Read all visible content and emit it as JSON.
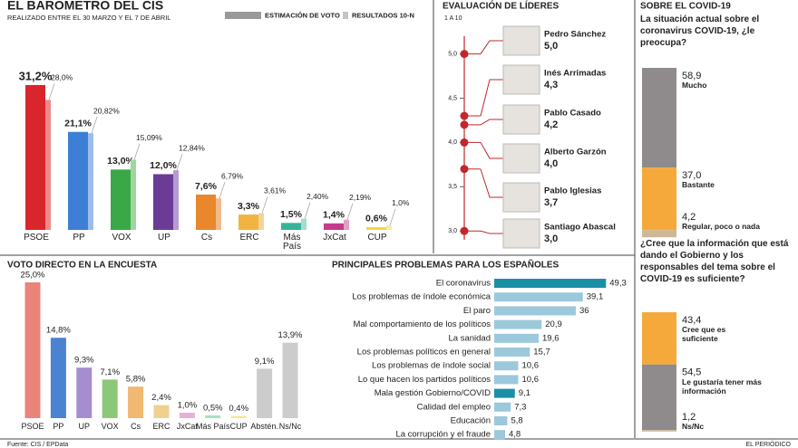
{
  "chart_data": [
    {
      "type": "bar",
      "title": "EL BARÓMETRO DEL CIS",
      "subtitle": "REALIZADO ENTRE EL 30 MARZO Y EL 7 DE ABRIL",
      "categories": [
        "PSOE",
        "PP",
        "VOX",
        "UP",
        "Cs",
        "ERC",
        "Más País",
        "JxCat",
        "CUP"
      ],
      "series": [
        {
          "name": "ESTIMACIÓN DE VOTO",
          "color": "#9a9a9a",
          "colors": [
            "#d9262c",
            "#3d7fd6",
            "#3aa847",
            "#6a3c96",
            "#e8872b",
            "#f2b441",
            "#37b39b",
            "#c43c8a",
            "#f0d83a"
          ],
          "values": [
            31.2,
            21.1,
            13.0,
            12.0,
            7.6,
            3.3,
            1.5,
            1.4,
            0.6
          ],
          "value_labels": [
            "31,2%",
            "21,1%",
            "13,0%",
            "12,0%",
            "7,6%",
            "3,3%",
            "1,5%",
            "1,4%",
            "0,6%"
          ]
        },
        {
          "name": "RESULTADOS 10-N",
          "color": "#c4c4c4",
          "colors": [
            "#ef8a8a",
            "#9cbde8",
            "#9ed69e",
            "#b79ad0",
            "#f2b98a",
            "#f5d49a",
            "#a2dcd0",
            "#e0a0c8",
            "#f5ec9f"
          ],
          "values": [
            28.0,
            20.82,
            15.09,
            12.84,
            6.79,
            3.61,
            2.4,
            2.19,
            1.0
          ],
          "value_labels": [
            "28,0%",
            "20,82%",
            "15,09%",
            "12,84%",
            "6,79%",
            "3,61%",
            "2,40%",
            "2,19%",
            "1,0%"
          ]
        }
      ]
    },
    {
      "type": "dot",
      "title": "EVALUACIÓN DE LÍDERES",
      "subtitle": "1 A 10",
      "categories": [
        "Pedro Sánchez",
        "Inés Arrimadas",
        "Pablo Casado",
        "Alberto Garzón",
        "Pablo Iglesias",
        "Santiago Abascal"
      ],
      "values": [
        5.0,
        4.3,
        4.2,
        4.0,
        3.7,
        3.0
      ],
      "value_labels": [
        "5,0",
        "4,3",
        "4,2",
        "4,0",
        "3,7",
        "3,0"
      ],
      "color": "#c0282d",
      "ylim": [
        2.9,
        5.2
      ],
      "yticks": [
        {
          "value": 3,
          "label": "3,0"
        },
        {
          "value": 3.5,
          "label": "3,5"
        },
        {
          "value": 4,
          "label": "4,0"
        },
        {
          "value": 4.5,
          "label": "4,5"
        },
        {
          "value": 5,
          "label": "5,0"
        }
      ]
    },
    {
      "type": "stacked",
      "title": "SOBRE EL COVID-19",
      "subtitle": "La situación actual sobre el coronavirus COVID-19, ¿le preocupa?",
      "series": [
        {
          "name": "Mucho",
          "color": "#8f8a8c",
          "values": [
            58.9
          ],
          "value_labels": [
            "58,9"
          ]
        },
        {
          "name": "Bastante",
          "color": "#f5a93a",
          "values": [
            37.0
          ],
          "value_labels": [
            "37,0"
          ]
        },
        {
          "name": "Regular, poco o nada",
          "color": "#cdb89a",
          "values": [
            4.2
          ],
          "value_labels": [
            "4,2"
          ]
        }
      ]
    },
    {
      "type": "stacked",
      "subtitle": "¿Cree que la información que está dando el Gobierno y los responsables del tema sobre el COVID-19 es suficiente?",
      "series": [
        {
          "name": "Cree que es suficiente",
          "color": "#f5a93a",
          "values": [
            43.4
          ],
          "value_labels": [
            "43,4"
          ]
        },
        {
          "name": "Le gustaría tener más información",
          "color": "#8f8a8c",
          "values": [
            54.5
          ],
          "value_labels": [
            "54,5"
          ]
        },
        {
          "name": "Ns/Nc",
          "color": "#cdb89a",
          "values": [
            1.2
          ],
          "value_labels": [
            "1,2"
          ]
        }
      ]
    },
    {
      "type": "bar",
      "title": "VOTO DIRECTO EN LA ENCUESTA",
      "categories": [
        "PSOE",
        "PP",
        "UP",
        "VOX",
        "Cs",
        "ERC",
        "JxCat",
        "Más País",
        "CUP",
        "Abstén.",
        "Ns/Nc"
      ],
      "values": [
        25.0,
        14.8,
        9.3,
        7.1,
        5.8,
        2.4,
        1.0,
        0.5,
        0.4,
        9.1,
        13.9
      ],
      "value_labels": [
        "25,0%",
        "14,8%",
        "9,3%",
        "7,1%",
        "5,8%",
        "2,4%",
        "1,0%",
        "0,5%",
        "0,4%",
        "9,1%",
        "13,9%"
      ],
      "colors": [
        "#e8847a",
        "#4b83d0",
        "#a58ed0",
        "#8dc87a",
        "#f0b870",
        "#f0d090",
        "#e8b0d8",
        "#a8e0c0",
        "#f5e890",
        "#cccccc",
        "#cccccc"
      ]
    },
    {
      "type": "hbar",
      "title": "PRINCIPALES PROBLEMAS PARA LOS ESPAÑOLES",
      "categories": [
        "El coronavirus",
        "Los problemas de índole económica",
        "El paro",
        "Mal comportamiento de los políticos",
        "La sanidad",
        "Los problemas políticos en general",
        "Los problemas de índole social",
        "Lo que hacen los partidos políticos",
        "Mala gestión Gobierno/COVID",
        "Calidad del empleo",
        "Educación",
        "La corrupción y el fraude"
      ],
      "values": [
        49.3,
        39.1,
        36,
        20.9,
        19.6,
        15.7,
        10.6,
        10.6,
        9.1,
        7.3,
        5.8,
        4.8
      ],
      "value_labels": [
        "49,3",
        "39,1",
        "36",
        "20,9",
        "19,6",
        "15,7",
        "10,6",
        "10,6",
        "9,1",
        "7,3",
        "5,8",
        "4,8"
      ],
      "colors": [
        "#1a8fa6",
        "#9cc8dc",
        "#9cc8dc",
        "#9cc8dc",
        "#9cc8dc",
        "#9cc8dc",
        "#9cc8dc",
        "#9cc8dc",
        "#1a8fa6",
        "#9cc8dc",
        "#9cc8dc",
        "#9cc8dc"
      ]
    }
  ],
  "footer": {
    "source": "Fuente: CIS / EPData",
    "publisher": "EL PERIÓDICO"
  }
}
